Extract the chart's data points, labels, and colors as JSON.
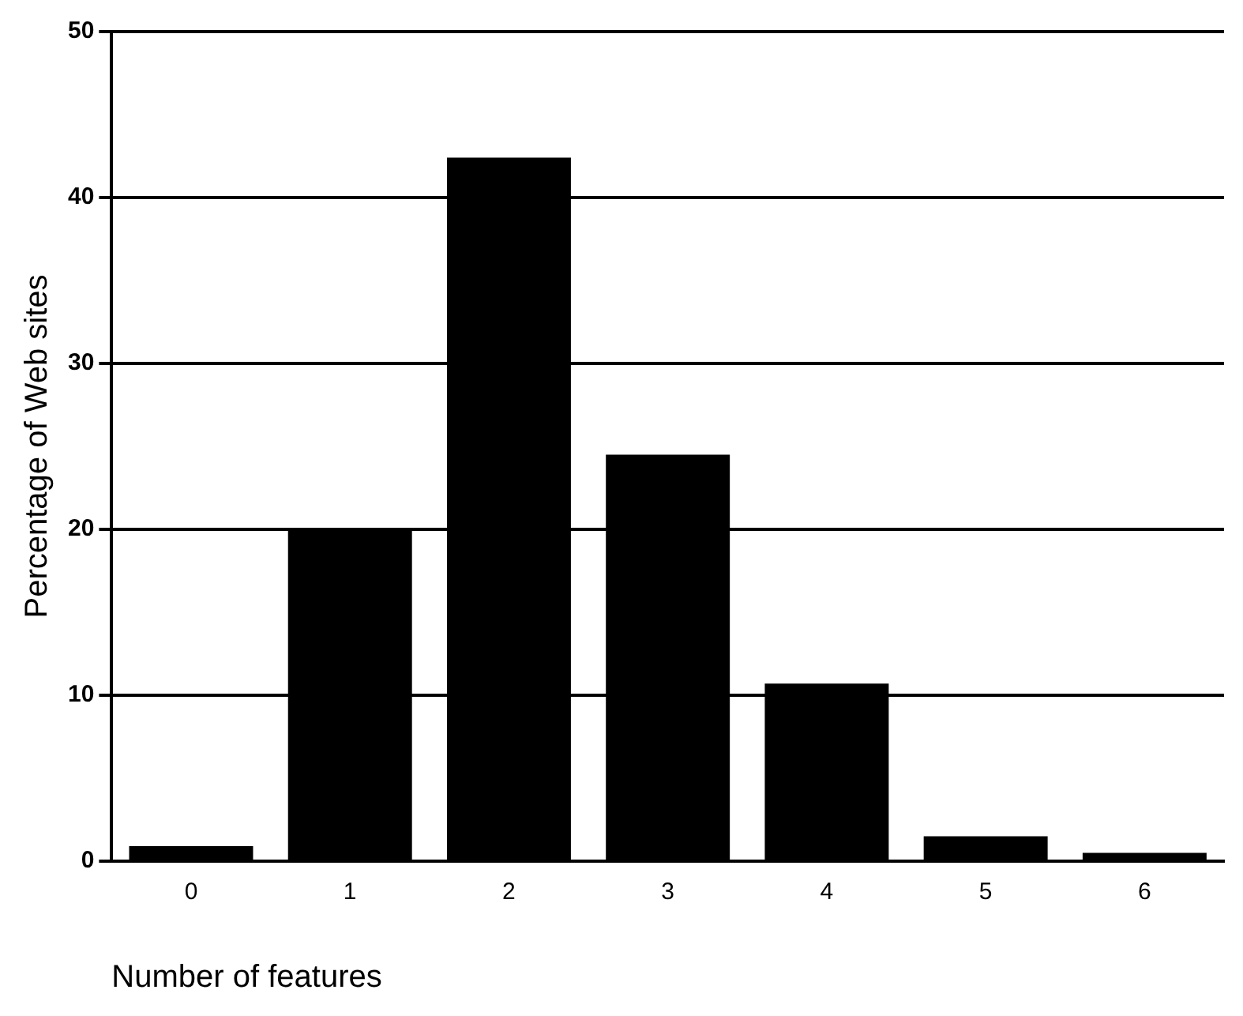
{
  "chart_data": {
    "type": "bar",
    "xlabel": "Number of features",
    "ylabel": "Percentage of Web sites",
    "categories": [
      "0",
      "1",
      "2",
      "3",
      "4",
      "5",
      "6"
    ],
    "values": [
      0.9,
      20.0,
      42.4,
      24.5,
      10.7,
      1.5,
      0.5
    ],
    "color": "#000000",
    "ylim": [
      0,
      50
    ],
    "yticks": [
      0,
      10,
      20,
      30,
      40,
      50
    ],
    "grid": "y",
    "legend": false
  }
}
